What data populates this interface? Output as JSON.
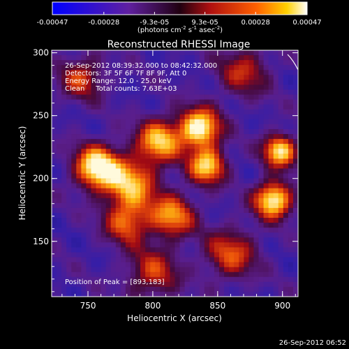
{
  "colorbar": {
    "tick_labels": [
      "-0.00047",
      "-0.00028",
      "-9.3e-05",
      "9.3e-05",
      "0.00028",
      "0.00047"
    ],
    "unit_label": "(photons cm",
    "unit_exp1": "-2",
    "unit_mid": " s",
    "unit_exp2": "-1",
    "unit_mid2": " asec",
    "unit_exp3": "-2",
    "unit_close": ")",
    "range": [
      -0.00047,
      0.00047
    ]
  },
  "colors": {
    "background": "#000000",
    "text": "#ffffff"
  },
  "chart_data": {
    "type": "heatmap",
    "title": "Reconstructed RHESSI Image",
    "xlabel": "Heliocentric X (arcsec)",
    "ylabel": "Heliocentric Y (arcsec)",
    "xlim": [
      722,
      912
    ],
    "ylim": [
      106,
      302
    ],
    "x_ticks": [
      750,
      800,
      850,
      900
    ],
    "y_ticks": [
      150,
      200,
      250,
      300
    ],
    "x_tick_labels": [
      "750",
      "800",
      "850",
      "900"
    ],
    "y_tick_labels": [
      "150",
      "200",
      "250",
      "300"
    ],
    "colormap": "hot (black-blue-purple-red-orange-yellow-white)",
    "peak": [
      893,
      183
    ],
    "info_lines": [
      "26-Sep-2012 08:39:32.000 to 08:42:32.000",
      "Detectors: 3F 5F 6F 7F 8F 9F, Att 0",
      "Energy Range: 12.0 - 25.0 keV",
      "Clean     Total counts: 7.63E+03"
    ],
    "peak_label": "Position of Peak = [893,183]",
    "sources": [
      {
        "x": 757,
        "y": 209,
        "intensity": 1.0,
        "width": 12
      },
      {
        "x": 783,
        "y": 196,
        "intensity": 0.75,
        "width": 14
      },
      {
        "x": 805,
        "y": 230,
        "intensity": 0.8,
        "width": 12
      },
      {
        "x": 836,
        "y": 240,
        "intensity": 1.0,
        "width": 11
      },
      {
        "x": 842,
        "y": 210,
        "intensity": 0.85,
        "width": 10
      },
      {
        "x": 815,
        "y": 170,
        "intensity": 0.7,
        "width": 12
      },
      {
        "x": 780,
        "y": 165,
        "intensity": 0.6,
        "width": 12
      },
      {
        "x": 893,
        "y": 183,
        "intensity": 1.0,
        "width": 10
      },
      {
        "x": 898,
        "y": 222,
        "intensity": 0.9,
        "width": 9
      },
      {
        "x": 860,
        "y": 140,
        "intensity": 0.55,
        "width": 14
      },
      {
        "x": 745,
        "y": 280,
        "intensity": 0.5,
        "width": 12
      },
      {
        "x": 870,
        "y": 285,
        "intensity": 0.45,
        "width": 14
      },
      {
        "x": 800,
        "y": 125,
        "intensity": 0.5,
        "width": 14
      }
    ]
  },
  "footer": {
    "timestamp": "26-Sep-2012 06:52"
  }
}
